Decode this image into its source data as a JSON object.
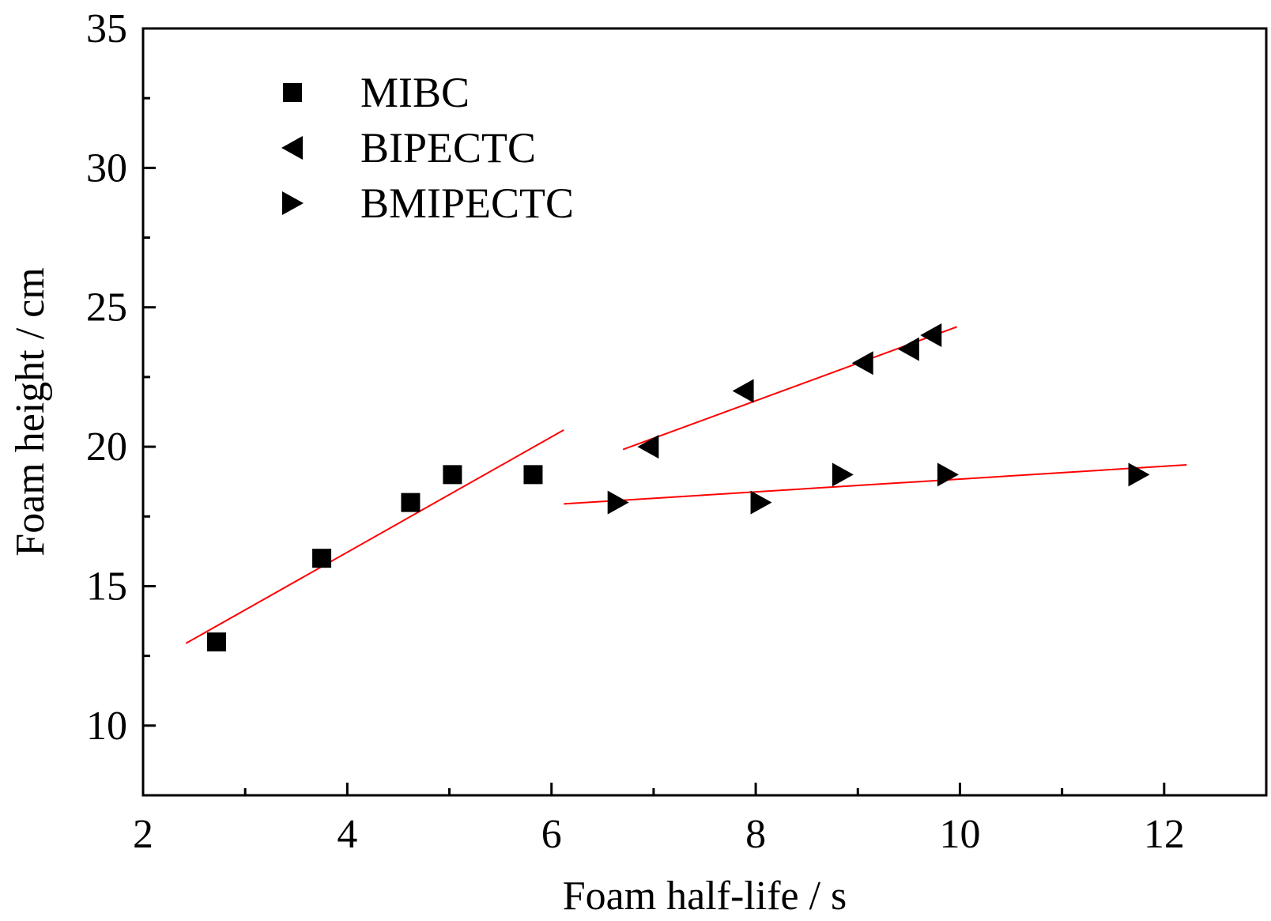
{
  "chart_data": {
    "type": "scatter",
    "title": "",
    "xlabel": "Foam half-life / s",
    "ylabel": "Foam height / cm",
    "xlim": [
      2,
      13
    ],
    "ylim": [
      7.5,
      35
    ],
    "xticks": [
      2,
      4,
      6,
      8,
      10,
      12
    ],
    "yticks": [
      10,
      15,
      20,
      25,
      30,
      35
    ],
    "grid": false,
    "legend_position": "top-left",
    "colors": {
      "marker": "#000000",
      "fit_line": "#ff0000",
      "axis": "#000000"
    },
    "series": [
      {
        "name": "MIBC",
        "marker": "square",
        "x": [
          2.72,
          3.75,
          4.62,
          5.03,
          5.82
        ],
        "y": [
          13,
          16,
          18,
          19,
          19
        ],
        "fit": {
          "x": [
            2.42,
            6.12
          ],
          "y": [
            12.95,
            20.6
          ]
        }
      },
      {
        "name": "BIPECTC",
        "marker": "triangle-left",
        "x": [
          6.95,
          7.88,
          9.05,
          9.5,
          9.72
        ],
        "y": [
          20,
          22,
          23,
          23.5,
          24
        ],
        "fit": {
          "x": [
            6.7,
            9.97
          ],
          "y": [
            19.9,
            24.3
          ]
        }
      },
      {
        "name": "BMIPECTC",
        "marker": "triangle-right",
        "x": [
          6.65,
          8.05,
          8.85,
          9.88,
          11.75
        ],
        "y": [
          18,
          18,
          19,
          19,
          19
        ],
        "fit": {
          "x": [
            6.12,
            12.22
          ],
          "y": [
            17.95,
            19.35
          ]
        }
      }
    ]
  }
}
